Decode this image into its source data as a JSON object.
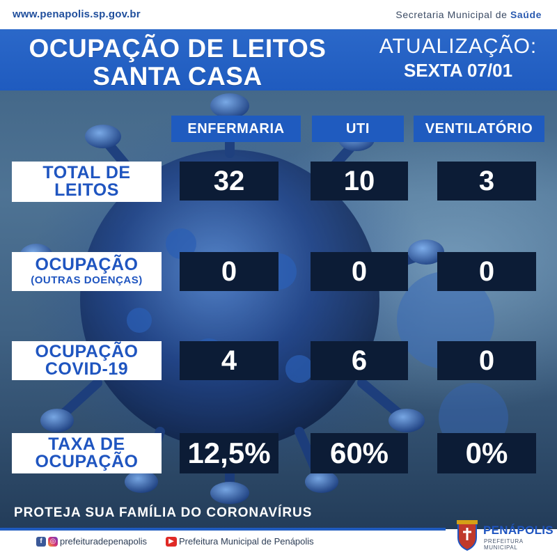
{
  "topbar": {
    "url": "www.penapolis.sp.gov.br",
    "secretaria_prefix": "Secretaria Municipal de ",
    "secretaria_bold": "Saúde"
  },
  "header": {
    "title_line1": "OCUPAÇÃO DE LEITOS",
    "title_line2": "SANTA CASA",
    "update_label": "ATUALIZAÇÃO:",
    "update_date": "SEXTA 07/01"
  },
  "columns": [
    "ENFERMARIA",
    "UTI",
    "VENTILATÓRIO"
  ],
  "rows": [
    {
      "label1": "TOTAL DE",
      "label2": "LEITOS",
      "values": [
        "32",
        "10",
        "3"
      ]
    },
    {
      "label1": "OCUPAÇÃO",
      "label2": "(OUTRAS DOENÇAS)",
      "values": [
        "0",
        "0",
        "0"
      ]
    },
    {
      "label1": "OCUPAÇÃO",
      "label2": "COVID-19",
      "values": [
        "4",
        "6",
        "0"
      ]
    },
    {
      "label1": "TAXA DE",
      "label2": "OCUPAÇÃO",
      "values": [
        "12,5%",
        "60%",
        "0%"
      ]
    }
  ],
  "footer": {
    "slogan": "PROTEJA SUA FAMÍLIA DO CORONAVÍRUS",
    "social_handle": "prefeiturадepenapolis",
    "youtube": "Prefeitura Municipal de Penápolis",
    "logo_name": "PENÁPOLIS",
    "logo_sub": "PREFEITURA MUNICIPAL"
  },
  "colors": {
    "accent": "#1f5bbf",
    "cell_bg": "#0c1c36",
    "label_text": "#1f55c0"
  }
}
